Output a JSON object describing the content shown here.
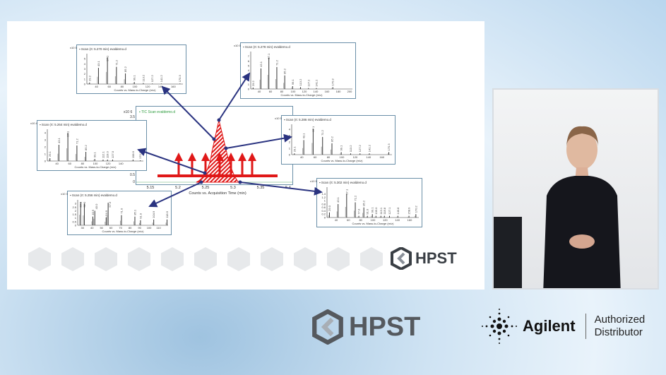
{
  "slide": {
    "tic": {
      "title": "TIC Scan evaldemo.d",
      "exponent": "x10 6",
      "yticks": [
        "3.5",
        "0.5",
        "0"
      ],
      "xticks": [
        "5.15",
        "5.2",
        "5.25",
        "5.3",
        "5.35",
        "5.4"
      ],
      "xlabel": "Counts vs. Acquisition Time (min)"
    },
    "spectra": [
      {
        "id": "p1",
        "title": "Scan (rt: 5.270 min) evaldemo.d",
        "exponent": "x10 5",
        "xlim": [
          25,
          175
        ],
        "ymax": 6,
        "yticks": [
          "0",
          "1",
          "2",
          "3",
          "4",
          "5"
        ],
        "xticks": [
          40,
          60,
          80,
          100,
          120,
          140,
          160
        ],
        "xlabel": "Counts vs. Mass-to-Charge (m/z)",
        "peaks": [
          [
            29.2,
            0.3,
            "29.2"
          ],
          [
            43.1,
            3.2,
            "43.1"
          ],
          [
            57.1,
            5.3,
            "57.1"
          ],
          [
            71.2,
            3.4,
            "71.2"
          ],
          [
            85.2,
            2.1,
            "85.2"
          ],
          [
            99.1,
            0.4,
            "99.1"
          ],
          [
            113.2,
            0.2,
            "113.2"
          ],
          [
            127.2,
            0.1,
            "127.2"
          ],
          [
            141.2,
            0.1,
            "141.2"
          ],
          [
            170.3,
            0.1,
            "170.3"
          ]
        ]
      },
      {
        "id": "p2",
        "title": "Scan (rt: 5.278 min) evaldemo.d",
        "exponent": "x10 5",
        "xlim": [
          25,
          205
        ],
        "ymax": 8,
        "yticks": [
          "0",
          "1",
          "2",
          "3",
          "4",
          "5",
          "6",
          "7"
        ],
        "xticks": [
          40,
          60,
          80,
          100,
          120,
          140,
          160,
          180,
          200
        ],
        "xlabel": "Counts vs. Mass-to-Charge (m/z)",
        "peaks": [
          [
            29.2,
            0.3,
            "29.2"
          ],
          [
            43.1,
            4.4,
            "43.1"
          ],
          [
            57.1,
            6.7,
            "57.1"
          ],
          [
            71.2,
            4.7,
            "71.2"
          ],
          [
            85.2,
            2.9,
            "85.2"
          ],
          [
            99.1,
            0.6,
            "99.1"
          ],
          [
            113.2,
            0.4,
            "113.2"
          ],
          [
            127.2,
            0.2,
            "127.2"
          ],
          [
            141.2,
            0.2,
            "141.2"
          ],
          [
            170.3,
            0.4,
            "170.3"
          ]
        ]
      },
      {
        "id": "p3",
        "title": "Scan (rt: 5.264 min) evaldemo.d",
        "exponent": "x10 4",
        "xlim": [
          25,
          175
        ],
        "ymax": 4.5,
        "yticks": [
          "0",
          "1",
          "2",
          "3",
          "4"
        ],
        "xticks": [
          40,
          60,
          80,
          100,
          120,
          140
        ],
        "xlabel": "Counts vs. Mass-to-Charge (m/z)",
        "peaks": [
          [
            29.1,
            0.4,
            "29.1"
          ],
          [
            43.1,
            2.3,
            "43.1"
          ],
          [
            57.1,
            4.0,
            "57.1"
          ],
          [
            71.2,
            2.2,
            "71.2"
          ],
          [
            85.2,
            1.3,
            "85.2"
          ],
          [
            99.1,
            0.3,
            "99.1"
          ],
          [
            112.1,
            0.2,
            "112.1"
          ],
          [
            119.0,
            0.2,
            "119.0"
          ],
          [
            127.0,
            0.2,
            "127.0"
          ],
          [
            158.9,
            0.2,
            "158.9"
          ],
          [
            170.2,
            0.1,
            "170.2"
          ]
        ]
      },
      {
        "id": "p4",
        "title": "Scan (rt: 5.286 min) evaldemo.d",
        "exponent": "x10 5",
        "xlim": [
          25,
          175
        ],
        "ymax": 4.8,
        "yticks": [
          "0",
          "1",
          "2",
          "3",
          "4"
        ],
        "xticks": [
          40,
          60,
          80,
          100,
          120,
          140,
          160
        ],
        "xlabel": "Counts vs. Mass-to-Charge (m/z)",
        "peaks": [
          [
            29.1,
            0.2,
            "29.1"
          ],
          [
            43.1,
            2.3,
            "43.1"
          ],
          [
            57.1,
            4.1,
            "57.1"
          ],
          [
            71.2,
            2.8,
            "71.2"
          ],
          [
            85.2,
            1.8,
            "85.2"
          ],
          [
            99.1,
            0.4,
            "99.1"
          ],
          [
            113.2,
            0.2,
            "113.2"
          ],
          [
            127.2,
            0.2,
            "127.2"
          ],
          [
            141.2,
            0.2,
            "141.2"
          ],
          [
            170.3,
            0.4,
            "170.3"
          ]
        ]
      },
      {
        "id": "p5",
        "title": "Scan (rt: 5.302 min) evaldemo.d",
        "exponent": "x10 5",
        "xlim": [
          25,
          175
        ],
        "ymax": 1.8,
        "yticks": [
          "0",
          "0.2",
          "0.4",
          "0.6",
          "0.8",
          "1",
          "1.2",
          "1.4"
        ],
        "xticks": [
          40,
          60,
          80,
          100,
          120,
          140,
          160
        ],
        "xlabel": "Counts vs. Mass-to-Charge (m/z)",
        "peaks": [
          [
            29.0,
            0.3,
            "29.0"
          ],
          [
            43.1,
            0.8,
            "43.1"
          ],
          [
            57.1,
            1.4,
            "57.1"
          ],
          [
            71.2,
            0.9,
            "71.2"
          ],
          [
            77.0,
            0.1,
            "77.0"
          ],
          [
            85.2,
            0.6,
            "85.2"
          ],
          [
            91.0,
            0.1,
            "91.0"
          ],
          [
            99.1,
            0.2,
            "99.1"
          ],
          [
            105.0,
            0.1,
            "105.0"
          ],
          [
            113.1,
            0.1,
            "113.1"
          ],
          [
            118.8,
            0.1,
            "118.8"
          ],
          [
            127.1,
            0.1,
            "127.1"
          ],
          [
            140.8,
            0.1,
            "140.8"
          ],
          [
            158.9,
            0.1,
            "158.9"
          ],
          [
            170.2,
            0.2,
            "170.2"
          ]
        ]
      },
      {
        "id": "p6",
        "title": "Scan (rt: 5.256 min) evaldemo.d",
        "exponent": "x10 3",
        "xlim": [
          25,
          120
        ],
        "ymax": 3.5,
        "yticks": [
          "0",
          "0.5",
          "1",
          "1.5",
          "2",
          "2.5",
          "3"
        ],
        "xticks": [
          30,
          40,
          50,
          60,
          70,
          80,
          90,
          100,
          110
        ],
        "xlabel": "Counts vs. Mass-to-Charge (m/z)",
        "peaks": [
          [
            28.1,
            3.2,
            "28.1"
          ],
          [
            32.0,
            3.0,
            "32.0"
          ],
          [
            40.9,
            1.2,
            "40.9"
          ],
          [
            43.0,
            2.0,
            "43.0"
          ],
          [
            54.9,
            1.1,
            "54.9"
          ],
          [
            57.0,
            3.1,
            "57.0"
          ],
          [
            71.0,
            1.4,
            "71.0"
          ],
          [
            85.1,
            1.2,
            "85.1"
          ],
          [
            91.0,
            0.7,
            "91.0"
          ],
          [
            104.9,
            0.8,
            "104.9"
          ],
          [
            118.9,
            0.8,
            "118.9"
          ]
        ]
      }
    ],
    "logo_text": "HPST"
  },
  "footer": {
    "hpst": "HPST",
    "agilent": "Agilent",
    "authorized": "Authorized",
    "distributor": "Distributor"
  },
  "colors": {
    "arrow": "#2a3380",
    "highlight": "#e01818",
    "frame": "#6a8fa8"
  }
}
